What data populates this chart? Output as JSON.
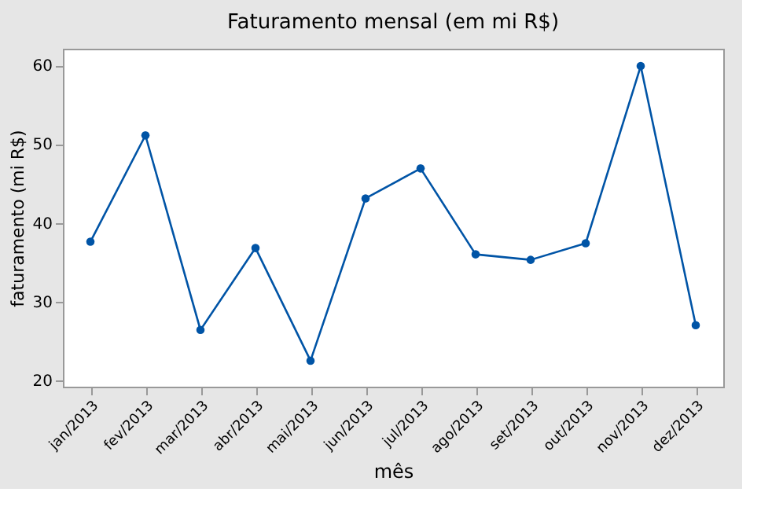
{
  "chart_data": {
    "type": "line",
    "title": "Faturamento mensal (em mi R$)",
    "xlabel": "mês",
    "ylabel": "faturamento (mi R$)",
    "categories": [
      "jan/2013",
      "fev/2013",
      "mar/2013",
      "abr/2013",
      "mai/2013",
      "jun/2013",
      "jul/2013",
      "ago/2013",
      "set/2013",
      "out/2013",
      "nov/2013",
      "dez/2013"
    ],
    "series": [
      {
        "color": "#0054a6",
        "values": [
          37.6,
          51.1,
          26.4,
          36.8,
          22.5,
          43.1,
          46.9,
          36.0,
          35.3,
          37.4,
          59.9,
          27.0
        ]
      }
    ],
    "ylim": [
      19.2,
      62.1
    ],
    "yticks": [
      20,
      30,
      40,
      50,
      60
    ],
    "grid": false,
    "legend": false,
    "marker": "circle",
    "line_style": "solid"
  }
}
